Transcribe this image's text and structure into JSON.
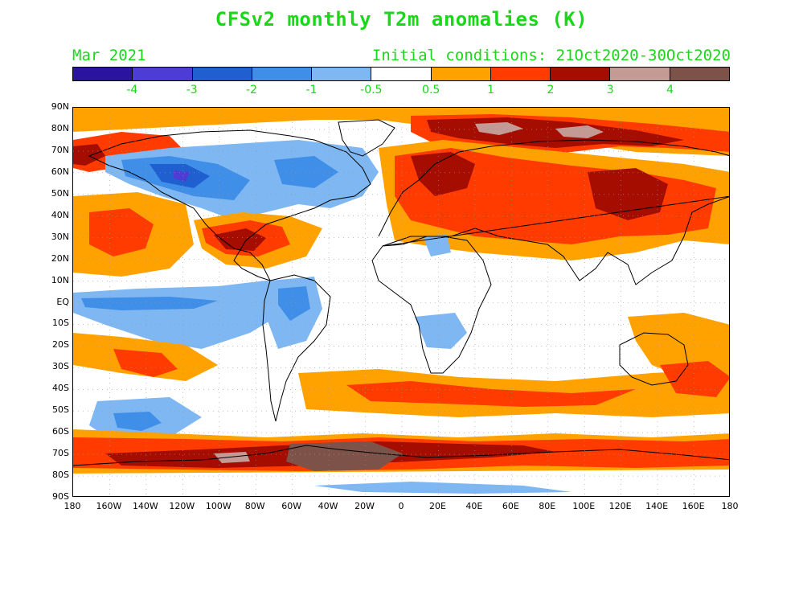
{
  "title": "CFSv2 monthly T2m anomalies (K)",
  "valid_month": "Mar 2021",
  "initial_conditions": "Initial conditions: 21Oct2020-30Oct2020",
  "colors": {
    "text_accent": "#18d818",
    "ocean_background": "#ffffff",
    "coastline": "#000000"
  },
  "legend": {
    "swatches": [
      {
        "range": "< -4",
        "color": "#2a139e"
      },
      {
        "range": "-4 to -3",
        "color": "#4d3dd4"
      },
      {
        "range": "-3 to -2",
        "color": "#1f5fd0"
      },
      {
        "range": "-2 to -1",
        "color": "#3f8ee8"
      },
      {
        "range": "-1 to -0.5",
        "color": "#7eb7f2"
      },
      {
        "range": "-0.5 to 0.5",
        "color": "#ffffff"
      },
      {
        "range": "0.5 to 1",
        "color": "#ffa200"
      },
      {
        "range": "1 to 2",
        "color": "#ff3b00"
      },
      {
        "range": "2 to 3",
        "color": "#a50d00"
      },
      {
        "range": "3 to 4",
        "color": "#c49a94"
      },
      {
        "range": "> 4",
        "color": "#7d5248"
      }
    ],
    "tick_labels": [
      "-4",
      "-3",
      "-2",
      "-1",
      "-0.5",
      "0.5",
      "1",
      "2",
      "3",
      "4"
    ]
  },
  "axes": {
    "latitude_labels": [
      "90N",
      "80N",
      "70N",
      "60N",
      "50N",
      "40N",
      "30N",
      "20N",
      "10N",
      "EQ",
      "10S",
      "20S",
      "30S",
      "40S",
      "50S",
      "60S",
      "70S",
      "80S",
      "90S"
    ],
    "longitude_labels": [
      "180",
      "160W",
      "140W",
      "120W",
      "100W",
      "80W",
      "60W",
      "40W",
      "20W",
      "0",
      "20E",
      "40E",
      "60E",
      "80E",
      "100E",
      "120E",
      "140E",
      "160E",
      "180"
    ]
  },
  "map_data": {
    "projection": "cylindrical equidistant",
    "field": "2 m temperature anomaly",
    "units": "K",
    "grid": "dotted 10° lines"
  }
}
